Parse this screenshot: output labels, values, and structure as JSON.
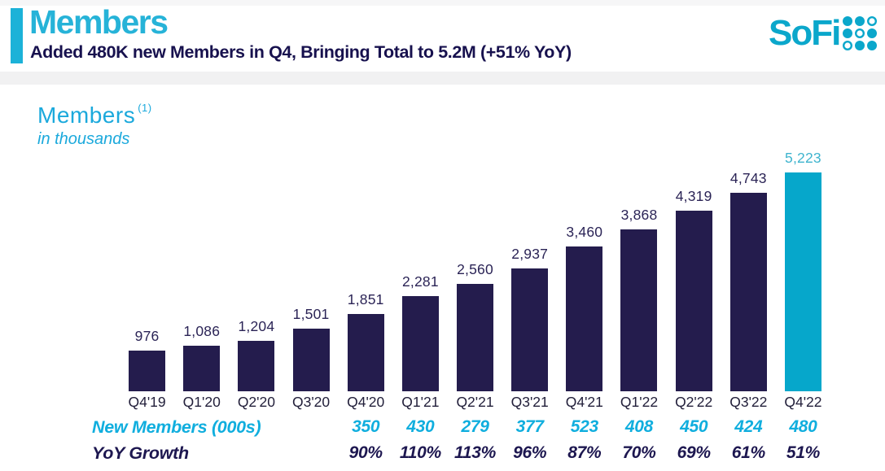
{
  "header": {
    "title": "Members",
    "subtitle": "Added 480K new Members in Q4, Bringing Total to 5.2M (+51% YoY)"
  },
  "logo": {
    "text": "SoFi"
  },
  "chart_data": {
    "type": "bar",
    "title": "Members",
    "title_superscript": "(1)",
    "subtitle": "in thousands",
    "categories": [
      "Q4'19",
      "Q1'20",
      "Q2'20",
      "Q3'20",
      "Q4'20",
      "Q1'21",
      "Q2'21",
      "Q3'21",
      "Q4'21",
      "Q1'22",
      "Q2'22",
      "Q3'22",
      "Q4'22"
    ],
    "values": [
      976,
      1086,
      1204,
      1501,
      1851,
      2281,
      2560,
      2937,
      3460,
      3868,
      4319,
      4743,
      5223
    ],
    "value_labels": [
      "976",
      "1,086",
      "1,204",
      "1,501",
      "1,851",
      "2,281",
      "2,560",
      "2,937",
      "3,460",
      "3,868",
      "4,319",
      "4,743",
      "5,223"
    ],
    "highlight_index": 12,
    "ylim": [
      0,
      5500
    ],
    "legend_position": "none",
    "grid": false,
    "rows": [
      {
        "label": "New Members (000s)",
        "values": [
          "",
          "",
          "",
          "",
          "350",
          "430",
          "279",
          "377",
          "523",
          "408",
          "450",
          "424",
          "480"
        ]
      },
      {
        "label": "YoY Growth",
        "values": [
          "",
          "",
          "",
          "",
          "90%",
          "110%",
          "113%",
          "96%",
          "87%",
          "70%",
          "69%",
          "61%",
          "51%"
        ]
      }
    ]
  },
  "colors": {
    "accent_cyan": "#1cb2d8",
    "logo_cyan": "#0ba7cb",
    "bar_navy": "#241c4d",
    "bar_highlight_cyan": "#06a7cb",
    "label_navy": "#2b2456",
    "label_highlight_cyan": "#3fb4ce",
    "subtitle_navy": "#17114e",
    "row_new_cyan": "#10aede",
    "row_yoy_navy": "#1d1750",
    "band_gray": "#f1f1f2"
  }
}
